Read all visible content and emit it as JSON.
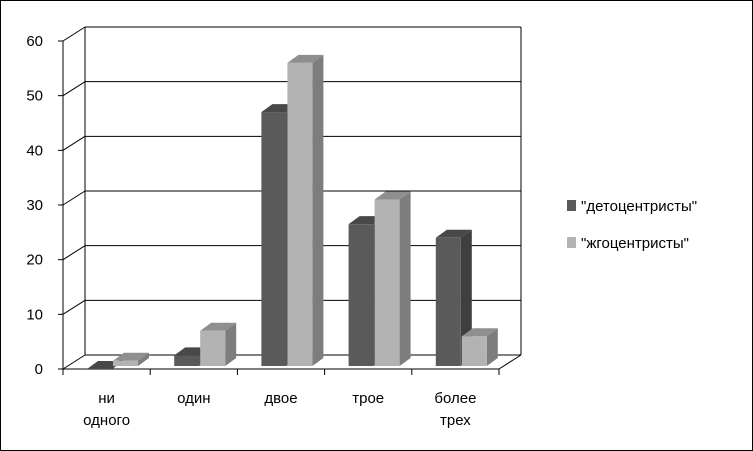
{
  "chart_data": {
    "type": "bar",
    "title": "",
    "xlabel": "",
    "ylabel": "",
    "categories": [
      [
        "ни",
        "одного"
      ],
      [
        "один"
      ],
      [
        "двое"
      ],
      [
        "трое"
      ],
      [
        "более",
        "трех"
      ]
    ],
    "series": [
      {
        "name": "\"детоцентристы\"",
        "values": [
          0,
          2.5,
          47,
          26.5,
          24
        ],
        "color": "#5a5a5a"
      },
      {
        "name": "\"жгоцентристы\"",
        "values": [
          1.5,
          7,
          56,
          31,
          6
        ],
        "color": "#b3b3b3"
      }
    ],
    "ylim": [
      0,
      60
    ],
    "yticks": [
      0,
      10,
      20,
      30,
      40,
      50,
      60
    ],
    "grid": true,
    "three_d": true,
    "legend_position": "right"
  }
}
